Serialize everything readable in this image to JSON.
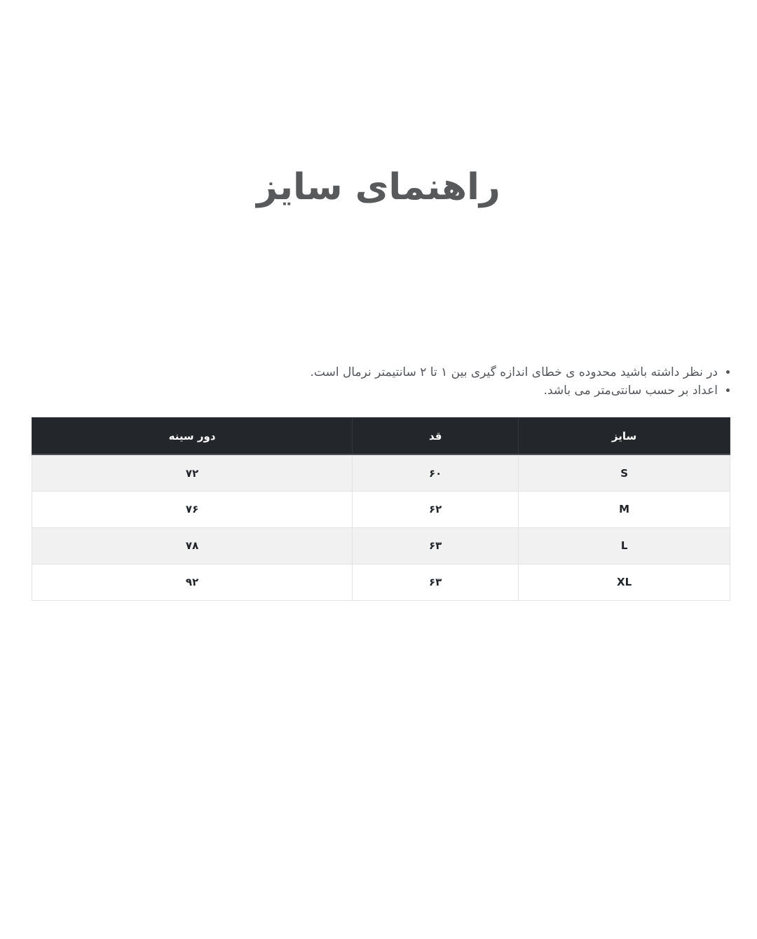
{
  "page": {
    "title": "راهنمای سایز"
  },
  "notes": {
    "items": [
      "در نظر داشته باشید محدوده ی خطای اندازه گیری بین ۱ تا ۲ سانتیمتر نرمال است.",
      "اعداد بر حسب سانتی‌متر می باشد."
    ]
  },
  "size_table": {
    "headers": {
      "size": "سایز",
      "length": "قد",
      "chest": "دور سینه"
    },
    "rows": [
      {
        "size": "S",
        "length": "۶۰",
        "chest": "۷۲"
      },
      {
        "size": "M",
        "length": "۶۲",
        "chest": "۷۶"
      },
      {
        "size": "L",
        "length": "۶۳",
        "chest": "۷۸"
      },
      {
        "size": "XL",
        "length": "۶۳",
        "chest": "۹۲"
      }
    ]
  },
  "colors": {
    "header_bg": "#23272b",
    "header_text": "#ffffff",
    "stripe_row_bg": "#f1f1f2",
    "body_text": "#212529",
    "note_text": "#54565a",
    "title_text": "#58595b",
    "cell_border": "#e2e4e6"
  }
}
